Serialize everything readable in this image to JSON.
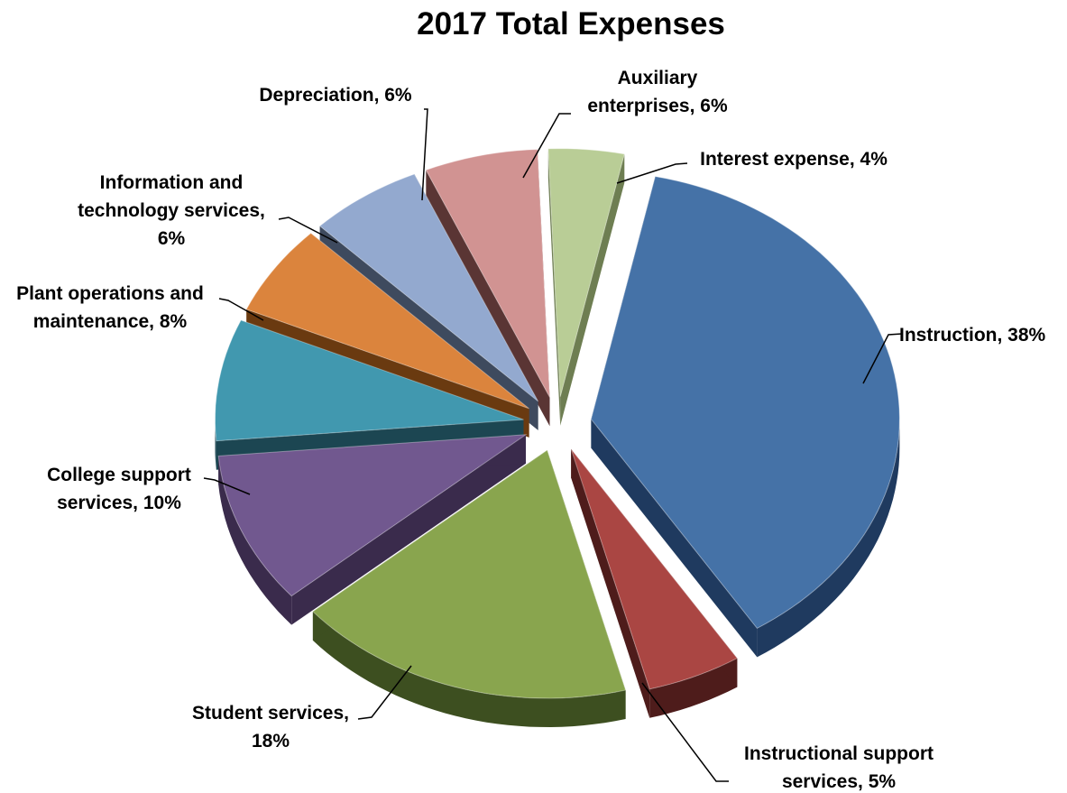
{
  "chart_data": {
    "type": "pie",
    "title": "2017 Total Expenses",
    "slices": [
      {
        "name": "Instruction",
        "value": 38,
        "color": "#4572A7",
        "side": "#1F3A5F",
        "label": [
          "Instruction, 38%"
        ]
      },
      {
        "name": "Instructional support services",
        "value": 5,
        "color": "#AA4643",
        "side": "#4E1C1B",
        "label": [
          "Instructional support",
          "services, 5%"
        ]
      },
      {
        "name": "Student services",
        "value": 18,
        "color": "#89A54E",
        "side": "#3D4F20",
        "label": [
          "Student services,",
          "18%"
        ]
      },
      {
        "name": "College support services",
        "value": 10,
        "color": "#71588F",
        "side": "#3A2B4C",
        "label": [
          "College support",
          "services, 10%"
        ]
      },
      {
        "name": "Plant operations and maintenance",
        "value": 8,
        "color": "#4198AF",
        "side": "#1C4652",
        "label": [
          "Plant operations and",
          "maintenance, 8%"
        ]
      },
      {
        "name": "Information and technology services",
        "value": 6,
        "color": "#DB843D",
        "side": "#6A3A10",
        "label": [
          "Information and",
          "technology services,",
          "6%"
        ]
      },
      {
        "name": "Depreciation",
        "value": 6,
        "color": "#93A9CF",
        "side": "#3E4A5E",
        "label": [
          "Depreciation, 6%"
        ]
      },
      {
        "name": "Auxiliary enterprises",
        "value": 6,
        "color": "#D19392",
        "side": "#5A3534",
        "label": [
          "Auxiliary",
          "enterprises, 6%"
        ]
      },
      {
        "name": "Interest expense",
        "value": 4,
        "color": "#B9CD96",
        "side": "#6E7E52",
        "label": [
          "Interest expense, 4%"
        ]
      }
    ],
    "legend": "none",
    "data_labels": "outside with leader lines"
  }
}
